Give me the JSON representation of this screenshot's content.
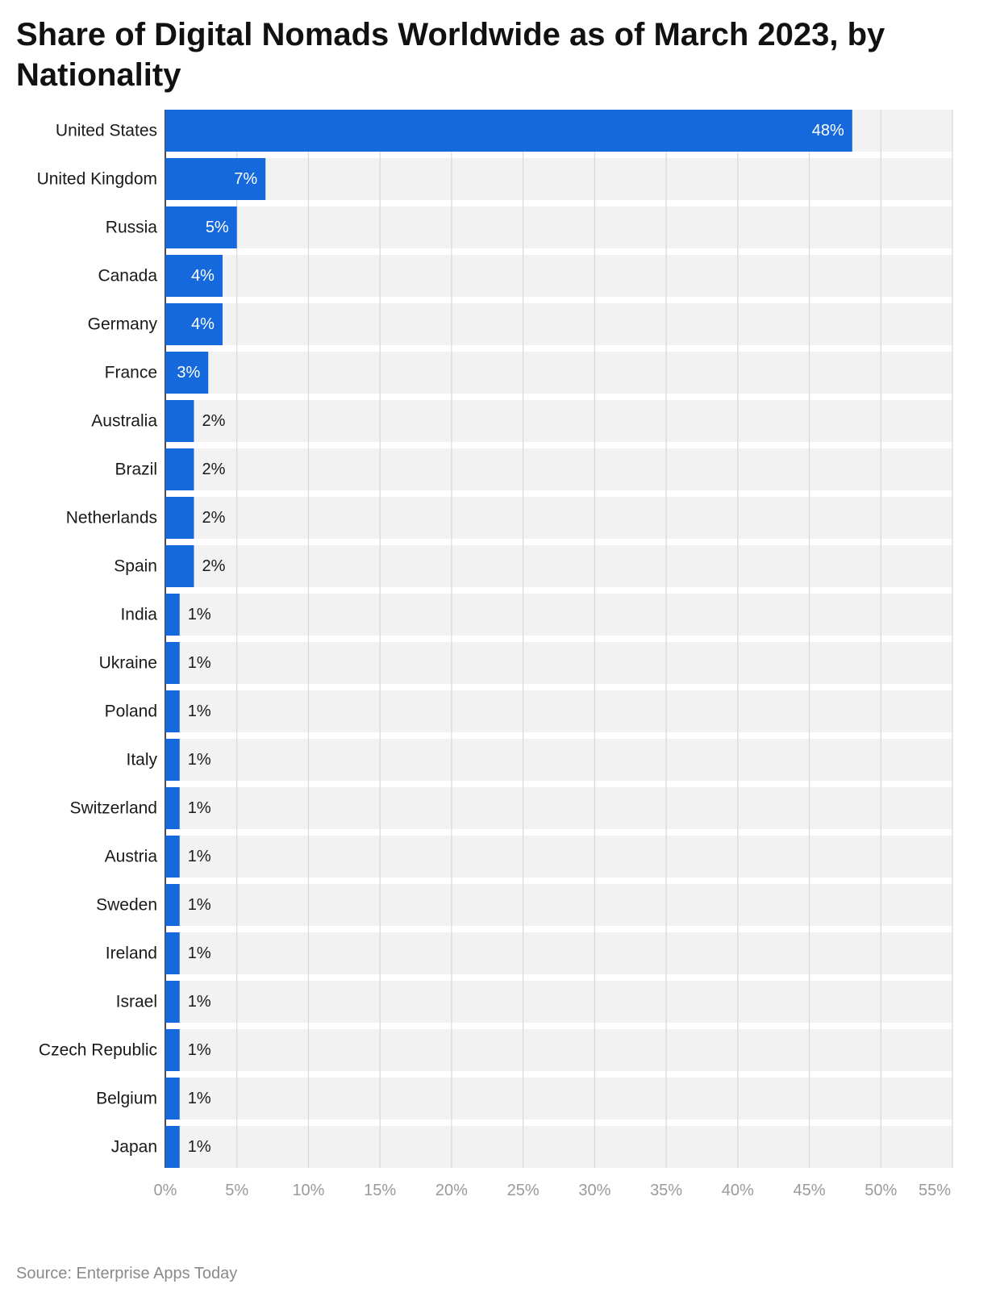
{
  "chart_data": {
    "type": "bar",
    "orientation": "horizontal",
    "title": "Share of Digital Nomads Worldwide as of March 2023, by Nationality",
    "categories": [
      "United States",
      "United Kingdom",
      "Russia",
      "Canada",
      "Germany",
      "France",
      "Australia",
      "Brazil",
      "Netherlands",
      "Spain",
      "India",
      "Ukraine",
      "Poland",
      "Italy",
      "Switzerland",
      "Austria",
      "Sweden",
      "Ireland",
      "Israel",
      "Czech Republic",
      "Belgium",
      "Japan"
    ],
    "values": [
      48,
      7,
      5,
      4,
      4,
      3,
      2,
      2,
      2,
      2,
      1,
      1,
      1,
      1,
      1,
      1,
      1,
      1,
      1,
      1,
      1,
      1
    ],
    "value_labels": [
      "48%",
      "7%",
      "5%",
      "4%",
      "4%",
      "3%",
      "2%",
      "2%",
      "2%",
      "2%",
      "1%",
      "1%",
      "1%",
      "1%",
      "1%",
      "1%",
      "1%",
      "1%",
      "1%",
      "1%",
      "1%",
      "1%"
    ],
    "xlim": [
      0,
      55
    ],
    "x_ticks": [
      0,
      5,
      10,
      15,
      20,
      25,
      30,
      35,
      40,
      45,
      50,
      55
    ],
    "x_tick_labels": [
      "0%",
      "5%",
      "10%",
      "15%",
      "20%",
      "25%",
      "30%",
      "35%",
      "40%",
      "45%",
      "50%",
      "55%"
    ],
    "xlabel": "",
    "ylabel": "",
    "grid": true,
    "colors": {
      "bar": "#1569dc",
      "row_background": "#f2f2f2",
      "gridline": "#d8d8d8",
      "label_inside": "#ffffff",
      "label_outside": "#1a1a1a"
    }
  },
  "source": "Source: Enterprise Apps Today"
}
